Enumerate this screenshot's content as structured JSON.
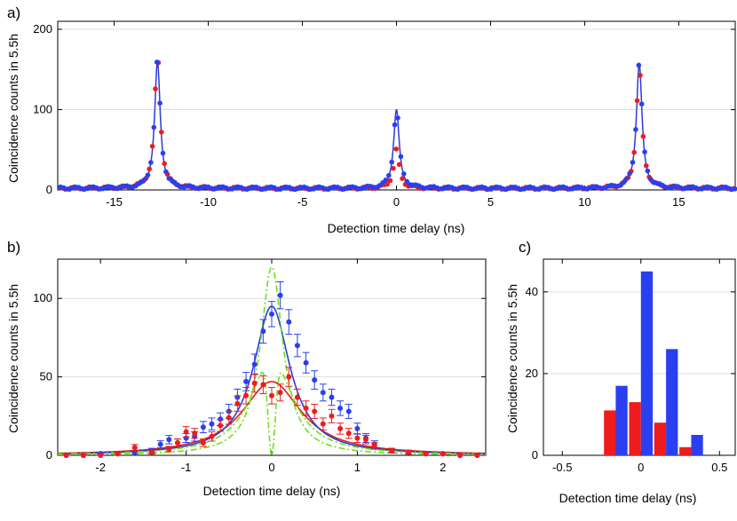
{
  "colors": {
    "red": "#ee1c1c",
    "blue": "#2a3ff0",
    "blue_fit": "#2c3bd6",
    "red_fit": "#e01b1b",
    "green": "#6ee01a",
    "grid": "#dddddd"
  },
  "chart_data": [
    {
      "panel": "a)",
      "type": "scatter",
      "xlabel": "Detection time delay (ns)",
      "ylabel": "Coincidence counts in 5.5h",
      "xlim": [
        -18,
        18
      ],
      "ylim": [
        0,
        210
      ],
      "xticks": [
        "-15",
        "-10",
        "-5",
        "0",
        "5",
        "10",
        "15"
      ],
      "yticks": [
        "0",
        "100",
        "200"
      ],
      "xtick_values": [
        -15,
        -10,
        -5,
        0,
        5,
        10,
        15
      ],
      "ytick_values": [
        0,
        100,
        200
      ],
      "peaks": [
        {
          "center": -12.7,
          "blue_height": 160,
          "red_height": 168
        },
        {
          "center": 0.0,
          "blue_height": 100,
          "red_height": 48
        },
        {
          "center": 12.9,
          "blue_height": 158,
          "red_height": 150
        }
      ],
      "peak_width_ns": 0.36,
      "baseline": 3
    },
    {
      "panel": "b)",
      "type": "scatter",
      "xlabel": "Detection time delay (ns)",
      "ylabel": "Coincidence counts in 5.5h",
      "xlim": [
        -2.5,
        2.5
      ],
      "ylim": [
        0,
        125
      ],
      "xticks": [
        "-2",
        "-1",
        "0",
        "1",
        "2"
      ],
      "yticks": [
        "0",
        "50",
        "100"
      ],
      "xtick_values": [
        -2,
        -1,
        0,
        1,
        2
      ],
      "ytick_values": [
        0,
        50,
        100
      ],
      "series": [
        {
          "name": "blue",
          "x": [
            -2.4,
            -2.2,
            -2.0,
            -1.8,
            -1.6,
            -1.4,
            -1.3,
            -1.2,
            -1.1,
            -1.0,
            -0.9,
            -0.8,
            -0.7,
            -0.6,
            -0.5,
            -0.4,
            -0.3,
            -0.2,
            -0.1,
            0.0,
            0.1,
            0.2,
            0.3,
            0.4,
            0.5,
            0.6,
            0.7,
            0.8,
            0.9,
            1.0,
            1.1,
            1.2,
            1.4,
            1.6,
            1.8,
            2.0,
            2.2,
            2.4
          ],
          "y": [
            0,
            0,
            1,
            1,
            2,
            3,
            7,
            10,
            8,
            11,
            12,
            18,
            20,
            23,
            28,
            37,
            47,
            58,
            79,
            90,
            102,
            85,
            70,
            59,
            48,
            40,
            37,
            30,
            28,
            17,
            11,
            7,
            3,
            2,
            1,
            1,
            0,
            0
          ]
        },
        {
          "name": "red",
          "x": [
            -2.4,
            -2.2,
            -2.0,
            -1.8,
            -1.6,
            -1.4,
            -1.2,
            -1.1,
            -1.0,
            -0.9,
            -0.8,
            -0.7,
            -0.6,
            -0.5,
            -0.4,
            -0.3,
            -0.2,
            -0.1,
            0.0,
            0.1,
            0.2,
            0.3,
            0.4,
            0.5,
            0.6,
            0.7,
            0.8,
            0.9,
            1.0,
            1.1,
            1.2,
            1.4,
            1.6,
            1.8,
            2.0,
            2.2,
            2.4
          ],
          "y": [
            0,
            0,
            0,
            1,
            5,
            2,
            4,
            8,
            15,
            14,
            8,
            12,
            19,
            24,
            33,
            38,
            46,
            45,
            38,
            40,
            50,
            37,
            30,
            28,
            20,
            25,
            17,
            14,
            11,
            10,
            6,
            3,
            2,
            1,
            1,
            0,
            0
          ]
        }
      ],
      "fits": [
        {
          "name": "blue_fit",
          "peak": 95
        },
        {
          "name": "red_fit",
          "peak": 47
        },
        {
          "name": "green_dashdot",
          "peak": 120
        }
      ]
    },
    {
      "panel": "c)",
      "type": "bar",
      "xlabel": "Detection time delay (ns)",
      "ylabel": "Coincidence counts in 5.5h",
      "xlim": [
        -0.62,
        0.6
      ],
      "ylim": [
        0,
        48
      ],
      "xticks": [
        "-0.5",
        "0",
        "0.5"
      ],
      "yticks": [
        "0",
        "20",
        "40"
      ],
      "xtick_values": [
        -0.5,
        0,
        0.5
      ],
      "ytick_values": [
        0,
        20,
        40
      ],
      "categories": [
        -0.16,
        0.0,
        0.16,
        0.32
      ],
      "series": [
        {
          "name": "red",
          "values": [
            11,
            13,
            8,
            2
          ]
        },
        {
          "name": "blue",
          "values": [
            17,
            45,
            26,
            5
          ]
        }
      ]
    }
  ]
}
